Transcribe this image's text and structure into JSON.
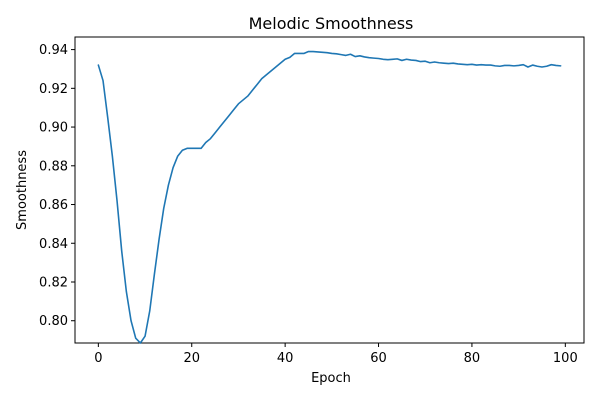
{
  "chart_data": {
    "type": "line",
    "title": "Melodic Smoothness",
    "xlabel": "Epoch",
    "ylabel": "Smoothness",
    "xlim": [
      -5,
      104
    ],
    "ylim": [
      0.7885,
      0.9465
    ],
    "xticks": [
      0,
      20,
      40,
      60,
      80,
      100
    ],
    "yticks": [
      0.8,
      0.82,
      0.84,
      0.86,
      0.88,
      0.9,
      0.92,
      0.94
    ],
    "grid": false,
    "line_color": "#1f77b4",
    "series": [
      {
        "x": [
          0,
          1,
          2,
          3,
          4,
          5,
          6,
          7,
          8,
          9,
          10,
          11,
          12,
          13,
          14,
          15,
          16,
          17,
          18,
          19,
          20,
          21,
          22,
          23,
          24,
          25,
          26,
          27,
          28,
          29,
          30,
          31,
          32,
          33,
          34,
          35,
          36,
          37,
          38,
          39,
          40,
          41,
          42,
          43,
          44,
          45,
          46,
          47,
          48,
          49,
          50,
          51,
          52,
          53,
          54,
          55,
          56,
          57,
          58,
          59,
          60,
          61,
          62,
          63,
          64,
          65,
          66,
          67,
          68,
          69,
          70,
          71,
          72,
          73,
          74,
          75,
          76,
          77,
          78,
          79,
          80,
          81,
          82,
          83,
          84,
          85,
          86,
          87,
          88,
          89,
          90,
          91,
          92,
          93,
          94,
          95,
          96,
          97,
          98,
          99
        ],
        "values": [
          0.932,
          0.924,
          0.905,
          0.885,
          0.862,
          0.836,
          0.815,
          0.8,
          0.791,
          0.7885,
          0.792,
          0.805,
          0.824,
          0.842,
          0.858,
          0.87,
          0.879,
          0.885,
          0.888,
          0.889,
          0.889,
          0.889,
          0.889,
          0.892,
          0.894,
          0.897,
          0.9,
          0.903,
          0.906,
          0.909,
          0.912,
          0.914,
          0.916,
          0.919,
          0.922,
          0.925,
          0.927,
          0.929,
          0.931,
          0.933,
          0.935,
          0.936,
          0.938,
          0.938,
          0.938,
          0.939,
          0.939,
          0.9388,
          0.9386,
          0.9384,
          0.938,
          0.9378,
          0.9374,
          0.937,
          0.9376,
          0.9364,
          0.9368,
          0.9362,
          0.9358,
          0.9356,
          0.9354,
          0.935,
          0.9348,
          0.935,
          0.9352,
          0.9344,
          0.935,
          0.9346,
          0.9344,
          0.9338,
          0.934,
          0.9332,
          0.9336,
          0.9332,
          0.933,
          0.9328,
          0.933,
          0.9326,
          0.9324,
          0.9322,
          0.9324,
          0.932,
          0.9322,
          0.932,
          0.932,
          0.9316,
          0.9314,
          0.9318,
          0.9318,
          0.9316,
          0.9318,
          0.9322,
          0.931,
          0.932,
          0.9314,
          0.931,
          0.9314,
          0.9322,
          0.9318,
          0.9316
        ]
      }
    ]
  }
}
